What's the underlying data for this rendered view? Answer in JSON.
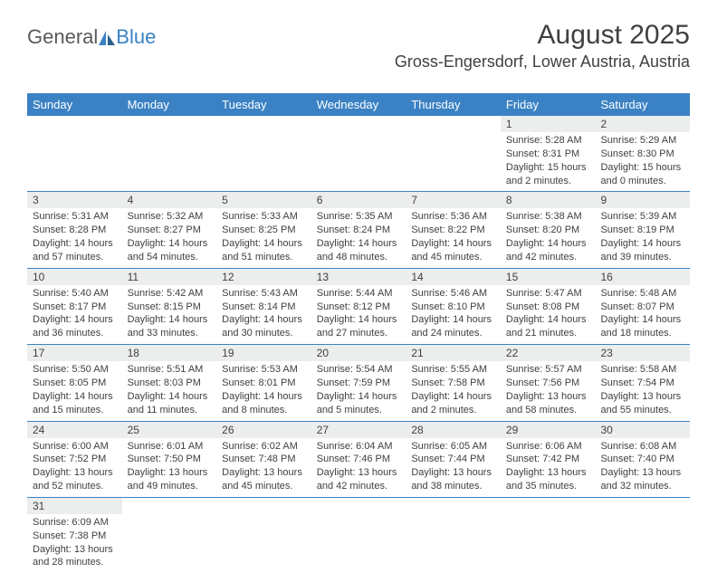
{
  "logo": {
    "text1": "General",
    "text2": "Blue"
  },
  "title": "August 2025",
  "location": "Gross-Engersdorf, Lower Austria, Austria",
  "colors": {
    "header_bg": "#3b82c4",
    "header_text": "#ffffff",
    "daynum_bg": "#eceeee",
    "text": "#404040",
    "border": "#3b82c4",
    "background": "#ffffff",
    "logo_gray": "#5a5a5a",
    "logo_blue": "#3b82c4"
  },
  "day_names": [
    "Sunday",
    "Monday",
    "Tuesday",
    "Wednesday",
    "Thursday",
    "Friday",
    "Saturday"
  ],
  "weeks": [
    [
      {
        "empty": true
      },
      {
        "empty": true
      },
      {
        "empty": true
      },
      {
        "empty": true
      },
      {
        "empty": true
      },
      {
        "num": "1",
        "sunrise": "Sunrise: 5:28 AM",
        "sunset": "Sunset: 8:31 PM",
        "daylight1": "Daylight: 15 hours",
        "daylight2": "and 2 minutes."
      },
      {
        "num": "2",
        "sunrise": "Sunrise: 5:29 AM",
        "sunset": "Sunset: 8:30 PM",
        "daylight1": "Daylight: 15 hours",
        "daylight2": "and 0 minutes."
      }
    ],
    [
      {
        "num": "3",
        "sunrise": "Sunrise: 5:31 AM",
        "sunset": "Sunset: 8:28 PM",
        "daylight1": "Daylight: 14 hours",
        "daylight2": "and 57 minutes."
      },
      {
        "num": "4",
        "sunrise": "Sunrise: 5:32 AM",
        "sunset": "Sunset: 8:27 PM",
        "daylight1": "Daylight: 14 hours",
        "daylight2": "and 54 minutes."
      },
      {
        "num": "5",
        "sunrise": "Sunrise: 5:33 AM",
        "sunset": "Sunset: 8:25 PM",
        "daylight1": "Daylight: 14 hours",
        "daylight2": "and 51 minutes."
      },
      {
        "num": "6",
        "sunrise": "Sunrise: 5:35 AM",
        "sunset": "Sunset: 8:24 PM",
        "daylight1": "Daylight: 14 hours",
        "daylight2": "and 48 minutes."
      },
      {
        "num": "7",
        "sunrise": "Sunrise: 5:36 AM",
        "sunset": "Sunset: 8:22 PM",
        "daylight1": "Daylight: 14 hours",
        "daylight2": "and 45 minutes."
      },
      {
        "num": "8",
        "sunrise": "Sunrise: 5:38 AM",
        "sunset": "Sunset: 8:20 PM",
        "daylight1": "Daylight: 14 hours",
        "daylight2": "and 42 minutes."
      },
      {
        "num": "9",
        "sunrise": "Sunrise: 5:39 AM",
        "sunset": "Sunset: 8:19 PM",
        "daylight1": "Daylight: 14 hours",
        "daylight2": "and 39 minutes."
      }
    ],
    [
      {
        "num": "10",
        "sunrise": "Sunrise: 5:40 AM",
        "sunset": "Sunset: 8:17 PM",
        "daylight1": "Daylight: 14 hours",
        "daylight2": "and 36 minutes."
      },
      {
        "num": "11",
        "sunrise": "Sunrise: 5:42 AM",
        "sunset": "Sunset: 8:15 PM",
        "daylight1": "Daylight: 14 hours",
        "daylight2": "and 33 minutes."
      },
      {
        "num": "12",
        "sunrise": "Sunrise: 5:43 AM",
        "sunset": "Sunset: 8:14 PM",
        "daylight1": "Daylight: 14 hours",
        "daylight2": "and 30 minutes."
      },
      {
        "num": "13",
        "sunrise": "Sunrise: 5:44 AM",
        "sunset": "Sunset: 8:12 PM",
        "daylight1": "Daylight: 14 hours",
        "daylight2": "and 27 minutes."
      },
      {
        "num": "14",
        "sunrise": "Sunrise: 5:46 AM",
        "sunset": "Sunset: 8:10 PM",
        "daylight1": "Daylight: 14 hours",
        "daylight2": "and 24 minutes."
      },
      {
        "num": "15",
        "sunrise": "Sunrise: 5:47 AM",
        "sunset": "Sunset: 8:08 PM",
        "daylight1": "Daylight: 14 hours",
        "daylight2": "and 21 minutes."
      },
      {
        "num": "16",
        "sunrise": "Sunrise: 5:48 AM",
        "sunset": "Sunset: 8:07 PM",
        "daylight1": "Daylight: 14 hours",
        "daylight2": "and 18 minutes."
      }
    ],
    [
      {
        "num": "17",
        "sunrise": "Sunrise: 5:50 AM",
        "sunset": "Sunset: 8:05 PM",
        "daylight1": "Daylight: 14 hours",
        "daylight2": "and 15 minutes."
      },
      {
        "num": "18",
        "sunrise": "Sunrise: 5:51 AM",
        "sunset": "Sunset: 8:03 PM",
        "daylight1": "Daylight: 14 hours",
        "daylight2": "and 11 minutes."
      },
      {
        "num": "19",
        "sunrise": "Sunrise: 5:53 AM",
        "sunset": "Sunset: 8:01 PM",
        "daylight1": "Daylight: 14 hours",
        "daylight2": "and 8 minutes."
      },
      {
        "num": "20",
        "sunrise": "Sunrise: 5:54 AM",
        "sunset": "Sunset: 7:59 PM",
        "daylight1": "Daylight: 14 hours",
        "daylight2": "and 5 minutes."
      },
      {
        "num": "21",
        "sunrise": "Sunrise: 5:55 AM",
        "sunset": "Sunset: 7:58 PM",
        "daylight1": "Daylight: 14 hours",
        "daylight2": "and 2 minutes."
      },
      {
        "num": "22",
        "sunrise": "Sunrise: 5:57 AM",
        "sunset": "Sunset: 7:56 PM",
        "daylight1": "Daylight: 13 hours",
        "daylight2": "and 58 minutes."
      },
      {
        "num": "23",
        "sunrise": "Sunrise: 5:58 AM",
        "sunset": "Sunset: 7:54 PM",
        "daylight1": "Daylight: 13 hours",
        "daylight2": "and 55 minutes."
      }
    ],
    [
      {
        "num": "24",
        "sunrise": "Sunrise: 6:00 AM",
        "sunset": "Sunset: 7:52 PM",
        "daylight1": "Daylight: 13 hours",
        "daylight2": "and 52 minutes."
      },
      {
        "num": "25",
        "sunrise": "Sunrise: 6:01 AM",
        "sunset": "Sunset: 7:50 PM",
        "daylight1": "Daylight: 13 hours",
        "daylight2": "and 49 minutes."
      },
      {
        "num": "26",
        "sunrise": "Sunrise: 6:02 AM",
        "sunset": "Sunset: 7:48 PM",
        "daylight1": "Daylight: 13 hours",
        "daylight2": "and 45 minutes."
      },
      {
        "num": "27",
        "sunrise": "Sunrise: 6:04 AM",
        "sunset": "Sunset: 7:46 PM",
        "daylight1": "Daylight: 13 hours",
        "daylight2": "and 42 minutes."
      },
      {
        "num": "28",
        "sunrise": "Sunrise: 6:05 AM",
        "sunset": "Sunset: 7:44 PM",
        "daylight1": "Daylight: 13 hours",
        "daylight2": "and 38 minutes."
      },
      {
        "num": "29",
        "sunrise": "Sunrise: 6:06 AM",
        "sunset": "Sunset: 7:42 PM",
        "daylight1": "Daylight: 13 hours",
        "daylight2": "and 35 minutes."
      },
      {
        "num": "30",
        "sunrise": "Sunrise: 6:08 AM",
        "sunset": "Sunset: 7:40 PM",
        "daylight1": "Daylight: 13 hours",
        "daylight2": "and 32 minutes."
      }
    ],
    [
      {
        "num": "31",
        "sunrise": "Sunrise: 6:09 AM",
        "sunset": "Sunset: 7:38 PM",
        "daylight1": "Daylight: 13 hours",
        "daylight2": "and 28 minutes."
      },
      {
        "empty": true
      },
      {
        "empty": true
      },
      {
        "empty": true
      },
      {
        "empty": true
      },
      {
        "empty": true
      },
      {
        "empty": true
      }
    ]
  ]
}
